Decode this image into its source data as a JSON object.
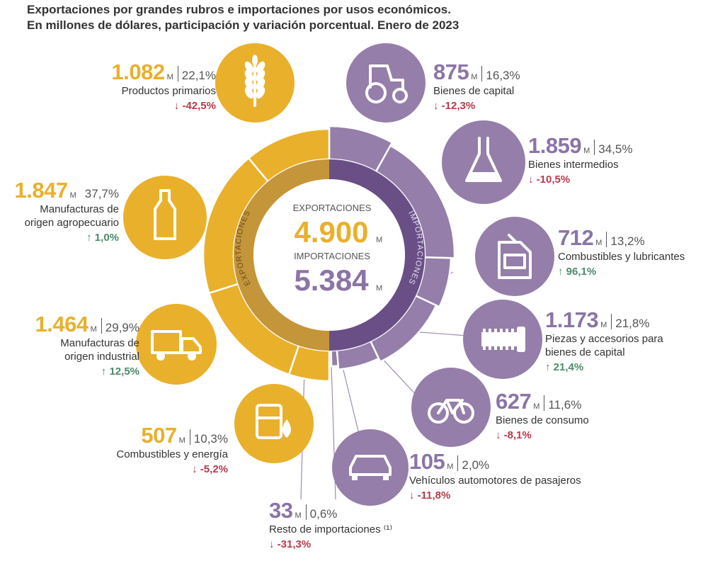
{
  "title": "Exportaciones por grandes rubros e importaciones por usos económicos.\nEn millones de dólares, participación y variación porcentual. Enero de 2023",
  "title_line1": "Exportaciones por grandes rubros e importaciones por usos económicos.",
  "title_line2": "En millones de dólares, participación y variación porcentual. Enero de 2023",
  "colors": {
    "exports": "#e9b02b",
    "exports_inner": "#c5953a",
    "imports": "#957ea9",
    "imports_inner": "#6a4f87",
    "decrease": "#b83a4b",
    "increase": "#4f8a69"
  },
  "center": {
    "exp_label": "EXPORTACIONES",
    "exp_value": "4.900",
    "imp_label": "IMPORTACIONES",
    "imp_value": "5.384",
    "unit": "M"
  },
  "ring_labels": {
    "exports": "EXPORTACIONES",
    "imports": "IMPORTACIONES"
  },
  "chart_data": {
    "type": "pie",
    "title": "Exportaciones por grandes rubros e importaciones por usos económicos. En millones de dólares, participación y variación porcentual. Enero de 2023",
    "unit": "M",
    "series": [
      {
        "name": "EXPORTACIONES",
        "total": 4900,
        "categories": [
          "Productos primarios",
          "Manufacturas de origen agropecuario",
          "Manufacturas de origen industrial",
          "Combustibles y energía"
        ],
        "values": [
          1082,
          1847,
          1464,
          507
        ],
        "shares": [
          22.1,
          37.7,
          29.9,
          10.3
        ],
        "changes": [
          -42.5,
          1.0,
          12.5,
          -5.2
        ]
      },
      {
        "name": "IMPORTACIONES",
        "total": 5384,
        "categories": [
          "Bienes de capital",
          "Bienes intermedios",
          "Combustibles y lubricantes",
          "Piezas y accesorios para bienes de capital",
          "Bienes de consumo",
          "Vehículos automotores de pasajeros",
          "Resto de importaciones (1)"
        ],
        "values": [
          875,
          1859,
          712,
          1173,
          627,
          105,
          33
        ],
        "shares": [
          16.3,
          34.5,
          13.2,
          21.8,
          11.6,
          2.0,
          0.6
        ],
        "changes": [
          -12.3,
          -10.5,
          96.1,
          21.4,
          -8.1,
          -11.8,
          -31.3
        ]
      }
    ]
  },
  "exports": [
    {
      "value": "1.082",
      "unit": "M",
      "pct": "22,1%",
      "label_lines": [
        "Productos primarios"
      ],
      "change": "↓ -42,5%",
      "dir": "down",
      "icon": "wheat-icon"
    },
    {
      "value": "1.847",
      "unit": "M",
      "pct": "37,7%",
      "label_lines": [
        "Manufacturas de",
        "origen agropecuario"
      ],
      "change": "↑ 1,0%",
      "dir": "up",
      "icon": "bottle-icon"
    },
    {
      "value": "1.464",
      "unit": "M",
      "pct": "29,9%",
      "label_lines": [
        "Manufacturas de",
        "origen industrial"
      ],
      "change": "↑ 12,5%",
      "dir": "up",
      "icon": "truck-icon"
    },
    {
      "value": "507",
      "unit": "M",
      "pct": "10,3%",
      "label_lines": [
        "Combustibles y energía"
      ],
      "change": "↓ -5,2%",
      "dir": "down",
      "icon": "fuel-barrel-icon"
    }
  ],
  "imports": [
    {
      "value": "875",
      "unit": "M",
      "pct": "16,3%",
      "label_lines": [
        "Bienes de capital"
      ],
      "change": "↓ -12,3%",
      "dir": "down",
      "icon": "tractor-icon"
    },
    {
      "value": "1.859",
      "unit": "M",
      "pct": "34,5%",
      "label_lines": [
        "Bienes intermedios"
      ],
      "change": "↓ -10,5%",
      "dir": "down",
      "icon": "flask-icon"
    },
    {
      "value": "712",
      "unit": "M",
      "pct": "13,2%",
      "label_lines": [
        "Combustibles y lubricantes"
      ],
      "change": "↑ 96,1%",
      "dir": "up",
      "icon": "jerrycan-icon"
    },
    {
      "value": "1.173",
      "unit": "M",
      "pct": "21,8%",
      "label_lines": [
        "Piezas y accesorios para",
        "bienes de capital"
      ],
      "change": "↑ 21,4%",
      "dir": "up",
      "icon": "screw-icon"
    },
    {
      "value": "627",
      "unit": "M",
      "pct": "11,6%",
      "label_lines": [
        "Bienes de consumo"
      ],
      "change": "↓ -8,1%",
      "dir": "down",
      "icon": "bicycle-icon"
    },
    {
      "value": "105",
      "unit": "M",
      "pct": "2,0%",
      "label_lines": [
        "Vehículos automotores de pasajeros"
      ],
      "change": "↓ -11,8%",
      "dir": "down",
      "icon": "car-icon"
    },
    {
      "value": "33",
      "unit": "M",
      "pct": "0,6%",
      "label_lines": [
        "Resto de importaciones ⁽¹⁾"
      ],
      "change": "↓ -31,3%",
      "dir": "down",
      "icon": "none"
    }
  ]
}
